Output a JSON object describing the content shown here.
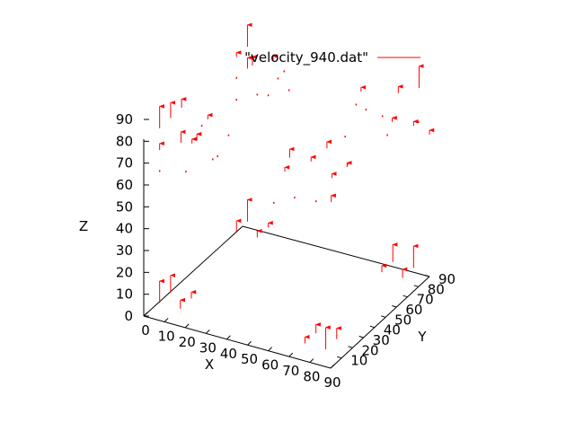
{
  "chart_data": {
    "type": "scatter",
    "subtype": "3d-vector-field",
    "title": "",
    "xlabel": "X",
    "ylabel": "Y",
    "zlabel": "Z",
    "xlim": [
      0,
      90
    ],
    "ylim": [
      0,
      90
    ],
    "zlim": [
      0,
      90
    ],
    "x_ticks": [
      "0",
      "10",
      "20",
      "30",
      "40",
      "50",
      "60",
      "70",
      "80",
      "90"
    ],
    "y_ticks": [
      "10",
      "20",
      "30",
      "40",
      "50",
      "60",
      "70",
      "80",
      "90"
    ],
    "z_ticks": [
      "0",
      "10",
      "20",
      "30",
      "40",
      "50",
      "60",
      "70",
      "80",
      "90"
    ],
    "grid": false,
    "legend_position": "top-right",
    "colors": {
      "series": "#ff0000",
      "axes": "#000000",
      "background": "#ffffff"
    },
    "series": [
      {
        "name": "\"velocity_940.dat\"",
        "vectors": [
          {
            "x": 5,
            "y": 5,
            "z": 5,
            "dz": 10
          },
          {
            "x": 5,
            "y": 15,
            "z": 5,
            "dz": 8
          },
          {
            "x": 15,
            "y": 5,
            "z": 5,
            "dz": 4
          },
          {
            "x": 15,
            "y": 15,
            "z": 5,
            "dz": 3
          },
          {
            "x": 75,
            "y": 5,
            "z": 5,
            "dz": 3
          },
          {
            "x": 75,
            "y": 15,
            "z": 5,
            "dz": 4
          },
          {
            "x": 85,
            "y": 5,
            "z": 5,
            "dz": 10
          },
          {
            "x": 85,
            "y": 15,
            "z": 5,
            "dz": 5
          },
          {
            "x": 5,
            "y": 75,
            "z": 5,
            "dz": 5
          },
          {
            "x": 5,
            "y": 85,
            "z": 5,
            "dz": 10
          },
          {
            "x": 15,
            "y": 75,
            "z": 5,
            "dz": 3
          },
          {
            "x": 15,
            "y": 85,
            "z": 5,
            "dz": 2
          },
          {
            "x": 75,
            "y": 75,
            "z": 5,
            "dz": 3
          },
          {
            "x": 75,
            "y": 85,
            "z": 5,
            "dz": 8
          },
          {
            "x": 85,
            "y": 75,
            "z": 5,
            "dz": 4
          },
          {
            "x": 85,
            "y": 85,
            "z": 5,
            "dz": 10
          },
          {
            "x": 5,
            "y": 5,
            "z": 65,
            "dz": 1
          },
          {
            "x": 5,
            "y": 5,
            "z": 75,
            "dz": 3
          },
          {
            "x": 5,
            "y": 5,
            "z": 85,
            "dz": 10
          },
          {
            "x": 5,
            "y": 15,
            "z": 85,
            "dz": 7
          },
          {
            "x": 5,
            "y": 25,
            "z": 85,
            "dz": 4
          },
          {
            "x": 10,
            "y": 15,
            "z": 75,
            "dz": 5
          },
          {
            "x": 10,
            "y": 25,
            "z": 70,
            "dz": 2
          },
          {
            "x": 15,
            "y": 10,
            "z": 65,
            "dz": 1
          },
          {
            "x": 15,
            "y": 20,
            "z": 75,
            "dz": 3
          },
          {
            "x": 15,
            "y": 30,
            "z": 80,
            "dz": 2
          },
          {
            "x": 20,
            "y": 15,
            "z": 85,
            "dz": 1
          },
          {
            "x": 20,
            "y": 25,
            "z": 65,
            "dz": 1
          },
          {
            "x": 25,
            "y": 20,
            "z": 70,
            "dz": 1
          },
          {
            "x": 25,
            "y": 30,
            "z": 75,
            "dz": 1
          },
          {
            "x": 5,
            "y": 75,
            "z": 65,
            "dz": 1
          },
          {
            "x": 5,
            "y": 75,
            "z": 75,
            "dz": 1
          },
          {
            "x": 5,
            "y": 75,
            "z": 85,
            "dz": 2
          },
          {
            "x": 5,
            "y": 85,
            "z": 85,
            "dz": 10
          },
          {
            "x": 5,
            "y": 85,
            "z": 75,
            "dz": 5
          },
          {
            "x": 10,
            "y": 80,
            "z": 80,
            "dz": 4
          },
          {
            "x": 15,
            "y": 75,
            "z": 70,
            "dz": 1
          },
          {
            "x": 15,
            "y": 85,
            "z": 65,
            "dz": 1
          },
          {
            "x": 20,
            "y": 80,
            "z": 85,
            "dz": 2
          },
          {
            "x": 20,
            "y": 90,
            "z": 75,
            "dz": 1
          },
          {
            "x": 25,
            "y": 85,
            "z": 70,
            "dz": 1
          },
          {
            "x": 25,
            "y": 75,
            "z": 80,
            "dz": 1
          },
          {
            "x": 60,
            "y": 5,
            "z": 65,
            "dz": 1
          },
          {
            "x": 60,
            "y": 15,
            "z": 75,
            "dz": 2
          },
          {
            "x": 65,
            "y": 10,
            "z": 85,
            "dz": 4
          },
          {
            "x": 70,
            "y": 5,
            "z": 70,
            "dz": 1
          },
          {
            "x": 70,
            "y": 20,
            "z": 80,
            "dz": 2
          },
          {
            "x": 75,
            "y": 15,
            "z": 65,
            "dz": 1
          },
          {
            "x": 75,
            "y": 25,
            "z": 85,
            "dz": 3
          },
          {
            "x": 80,
            "y": 20,
            "z": 75,
            "dz": 2
          },
          {
            "x": 85,
            "y": 10,
            "z": 70,
            "dz": 3
          },
          {
            "x": 85,
            "y": 25,
            "z": 80,
            "dz": 1
          },
          {
            "x": 90,
            "y": 15,
            "z": 85,
            "dz": 2
          },
          {
            "x": 60,
            "y": 70,
            "z": 65,
            "dz": 1
          },
          {
            "x": 60,
            "y": 80,
            "z": 75,
            "dz": 1
          },
          {
            "x": 65,
            "y": 75,
            "z": 85,
            "dz": 2
          },
          {
            "x": 70,
            "y": 70,
            "z": 80,
            "dz": 1
          },
          {
            "x": 70,
            "y": 85,
            "z": 70,
            "dz": 1
          },
          {
            "x": 75,
            "y": 80,
            "z": 65,
            "dz": 1
          },
          {
            "x": 75,
            "y": 90,
            "z": 80,
            "dz": 3
          },
          {
            "x": 80,
            "y": 75,
            "z": 75,
            "dz": 2
          },
          {
            "x": 85,
            "y": 85,
            "z": 70,
            "dz": 2
          },
          {
            "x": 85,
            "y": 90,
            "z": 85,
            "dz": 10
          },
          {
            "x": 90,
            "y": 80,
            "z": 75,
            "dz": 1
          },
          {
            "x": 90,
            "y": 90,
            "z": 65,
            "dz": 2
          }
        ]
      }
    ]
  }
}
